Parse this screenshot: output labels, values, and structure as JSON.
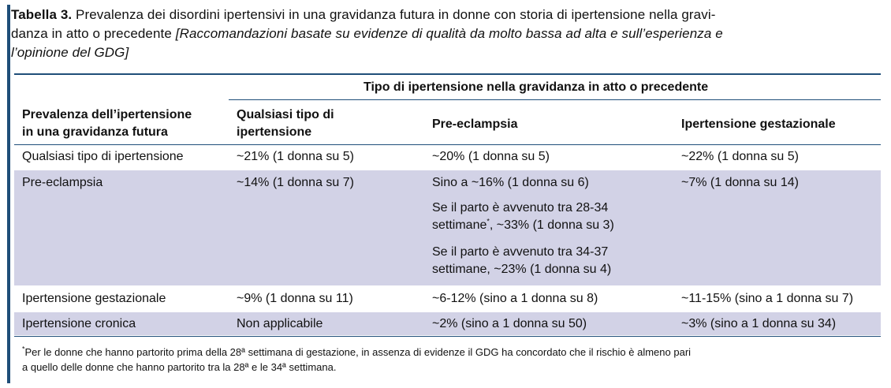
{
  "caption": {
    "label": "Tabella 3.",
    "title": "Prevalenza dei disordini ipertensivi in una gravidanza futura in donne con storia di ipertensione nella gravi-danza in atto o precedente",
    "note": "[Raccomandazioni basate su evidenze di qualità da molto bassa ad alta e sull’esperienza e l’opinione del GDG]"
  },
  "table": {
    "group_header": "Tipo di ipertensione nella gravidanza in atto o precedente",
    "columns": [
      "Prevalenza dell’ipertensione in una gravidanza futura",
      "Qualsiasi tipo di ipertensione",
      "Pre-eclampsia",
      "Ipertensione gestazionale"
    ],
    "rows": [
      {
        "label": "Qualsiasi tipo di ipertensione",
        "any": "~21% (1 donna su 5)",
        "pre": [
          "~20% (1 donna su 5)"
        ],
        "gest": "~22% (1 donna su 5)"
      },
      {
        "label": "Pre-eclampsia",
        "any": "~14% (1 donna su 7)",
        "pre": [
          "Sino a ~16% (1 donna su 6)",
          "Se il parto è avvenuto tra 28-34 settimane*, ~33% (1 donna su 3)",
          "Se il parto è avvenuto tra 34-37 settimane, ~23% (1 donna su 4)"
        ],
        "gest": "~7% (1 donna su 14)"
      },
      {
        "label": "Ipertensione gestazionale",
        "any": "~9% (1 donna su 11)",
        "pre": [
          "~6-12% (sino a 1 donna su 8)"
        ],
        "gest": "~11-15% (sino a 1 donna su 7)"
      },
      {
        "label": "Ipertensione cronica",
        "any": "Non applicabile",
        "pre": [
          "~2% (sino a 1 donna su 50)"
        ],
        "gest": "~3% (sino a 1 donna su 34)"
      }
    ]
  },
  "footnote": "*Per le donne che hanno partorito prima della 28ª settimana di gestazione, in assenza di evidenze il GDG ha concordato che il rischio è almeno pari a quello delle donne che hanno partorito tra la 28ª e le 34ª settimana.",
  "colors": {
    "accent": "#1f4e79",
    "band": "#d2d2e6",
    "rule": "#1f4e79"
  }
}
